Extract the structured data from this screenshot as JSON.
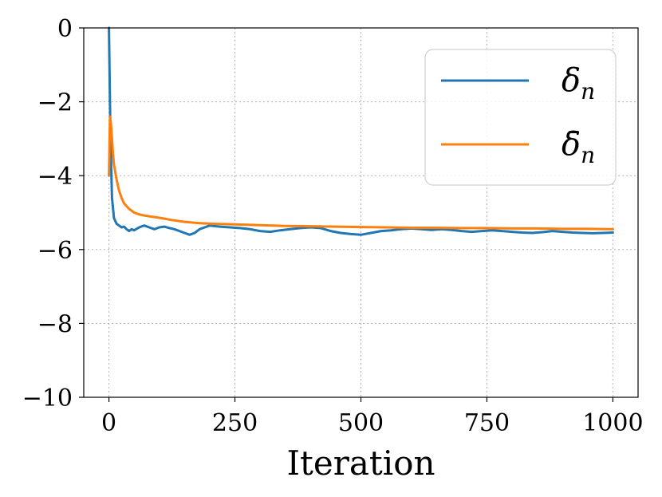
{
  "chart_data": {
    "type": "line",
    "xlabel": "Iteration",
    "ylabel": "",
    "xlim": [
      -50,
      1050
    ],
    "ylim": [
      -10,
      0
    ],
    "xticks": [
      0,
      250,
      500,
      750,
      1000
    ],
    "yticks": [
      0,
      -2,
      -4,
      -6,
      -8,
      -10
    ],
    "xtick_labels": [
      "0",
      "250",
      "500",
      "750",
      "1000"
    ],
    "ytick_labels": [
      "0",
      "−2",
      "−4",
      "−6",
      "−8",
      "−10"
    ],
    "grid": true,
    "legend_position": "top-right",
    "series": [
      {
        "name": "δ",
        "subscript": "n",
        "color": "#1f77b4",
        "x": [
          0,
          3,
          6,
          10,
          15,
          20,
          25,
          30,
          35,
          40,
          45,
          50,
          60,
          70,
          80,
          90,
          100,
          110,
          120,
          130,
          140,
          150,
          160,
          170,
          180,
          190,
          200,
          220,
          240,
          260,
          280,
          300,
          320,
          340,
          360,
          380,
          400,
          420,
          440,
          460,
          480,
          500,
          520,
          540,
          560,
          580,
          600,
          620,
          640,
          660,
          680,
          700,
          720,
          740,
          760,
          780,
          800,
          820,
          840,
          860,
          880,
          900,
          920,
          940,
          960,
          980,
          1000
        ],
        "y": [
          0,
          -3.0,
          -4.6,
          -5.15,
          -5.3,
          -5.35,
          -5.4,
          -5.38,
          -5.45,
          -5.5,
          -5.45,
          -5.48,
          -5.4,
          -5.35,
          -5.4,
          -5.45,
          -5.4,
          -5.38,
          -5.42,
          -5.45,
          -5.5,
          -5.55,
          -5.6,
          -5.55,
          -5.45,
          -5.4,
          -5.35,
          -5.38,
          -5.4,
          -5.42,
          -5.45,
          -5.5,
          -5.52,
          -5.48,
          -5.45,
          -5.42,
          -5.4,
          -5.42,
          -5.5,
          -5.55,
          -5.58,
          -5.6,
          -5.55,
          -5.5,
          -5.48,
          -5.45,
          -5.43,
          -5.45,
          -5.47,
          -5.45,
          -5.47,
          -5.5,
          -5.52,
          -5.5,
          -5.48,
          -5.5,
          -5.52,
          -5.54,
          -5.55,
          -5.53,
          -5.5,
          -5.52,
          -5.54,
          -5.55,
          -5.56,
          -5.55,
          -5.54
        ]
      },
      {
        "name": "δ̄",
        "subscript": "n",
        "color": "#ff7f0e",
        "x": [
          0,
          2,
          4,
          6,
          8,
          10,
          15,
          20,
          25,
          30,
          40,
          50,
          60,
          70,
          80,
          100,
          125,
          150,
          175,
          200,
          250,
          300,
          350,
          400,
          450,
          500,
          550,
          600,
          650,
          700,
          750,
          800,
          850,
          900,
          950,
          1000
        ],
        "y": [
          -4.0,
          -2.4,
          -2.6,
          -3.0,
          -3.4,
          -3.7,
          -4.1,
          -4.4,
          -4.6,
          -4.75,
          -4.9,
          -5.0,
          -5.05,
          -5.08,
          -5.1,
          -5.14,
          -5.2,
          -5.25,
          -5.28,
          -5.3,
          -5.32,
          -5.34,
          -5.36,
          -5.37,
          -5.38,
          -5.39,
          -5.4,
          -5.41,
          -5.41,
          -5.42,
          -5.42,
          -5.43,
          -5.43,
          -5.44,
          -5.44,
          -5.45
        ]
      }
    ]
  }
}
